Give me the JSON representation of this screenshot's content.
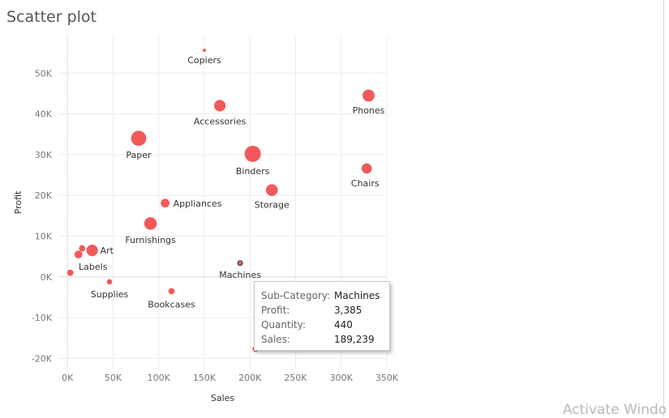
{
  "page": {
    "title": "Scatter plot",
    "watermark": "Activate Windo"
  },
  "chart_data": {
    "type": "scatter",
    "title": "",
    "xlabel": "Sales",
    "ylabel": "Profit",
    "xlim": [
      -10000,
      350000
    ],
    "ylim": [
      -22500,
      59000
    ],
    "x_ticks": [
      0,
      50000,
      100000,
      150000,
      200000,
      250000,
      300000,
      350000
    ],
    "x_tick_labels": [
      "0K",
      "50K",
      "100K",
      "150K",
      "200K",
      "250K",
      "300K",
      "350K"
    ],
    "y_ticks": [
      -20000,
      -10000,
      0,
      10000,
      20000,
      30000,
      40000,
      50000
    ],
    "y_tick_labels": [
      "-20K",
      "-10K",
      "0K",
      "10K",
      "20K",
      "30K",
      "40K",
      "50K"
    ],
    "grid": true,
    "marker_color": "#f2595a",
    "size_encoding": "Quantity",
    "points": [
      {
        "label": "Copiers",
        "x": 150000,
        "y": 55600,
        "size": 234
      },
      {
        "label": "Accessories",
        "x": 167000,
        "y": 42000,
        "size": 2976
      },
      {
        "label": "Phones",
        "x": 330000,
        "y": 44500,
        "size": 3289
      },
      {
        "label": "Paper",
        "x": 78000,
        "y": 34000,
        "size": 5178
      },
      {
        "label": "Binders",
        "x": 203000,
        "y": 30200,
        "size": 5974
      },
      {
        "label": "Chairs",
        "x": 328000,
        "y": 26600,
        "size": 2356
      },
      {
        "label": "Storage",
        "x": 224000,
        "y": 21300,
        "size": 3158
      },
      {
        "label": "Appliances",
        "x": 107000,
        "y": 18100,
        "size": 1729
      },
      {
        "label": "Furnishings",
        "x": 91000,
        "y": 13100,
        "size": 3563
      },
      {
        "label": "Art",
        "x": 27000,
        "y": 6500,
        "size": 3000
      },
      {
        "label": "",
        "x": 16000,
        "y": 7000,
        "size": 914
      },
      {
        "label": "Labels",
        "x": 12000,
        "y": 5500,
        "size": 1400
      },
      {
        "label": "",
        "x": 3000,
        "y": 1000,
        "size": 900
      },
      {
        "label": "Supplies",
        "x": 46000,
        "y": -1200,
        "size": 647
      },
      {
        "label": "Bookcases",
        "x": 114000,
        "y": -3500,
        "size": 868
      },
      {
        "label": "Machines",
        "x": 189239,
        "y": 3385,
        "size": 440,
        "highlighted": true
      },
      {
        "label": "",
        "x": 206000,
        "y": -17700,
        "size": 800
      }
    ]
  },
  "tooltip": {
    "rows": [
      {
        "key": "Sub-Category:",
        "value": "Machines"
      },
      {
        "key": "Profit:",
        "value": "3,385"
      },
      {
        "key": "Quantity:",
        "value": "440"
      },
      {
        "key": "Sales:",
        "value": "189,239"
      }
    ]
  }
}
